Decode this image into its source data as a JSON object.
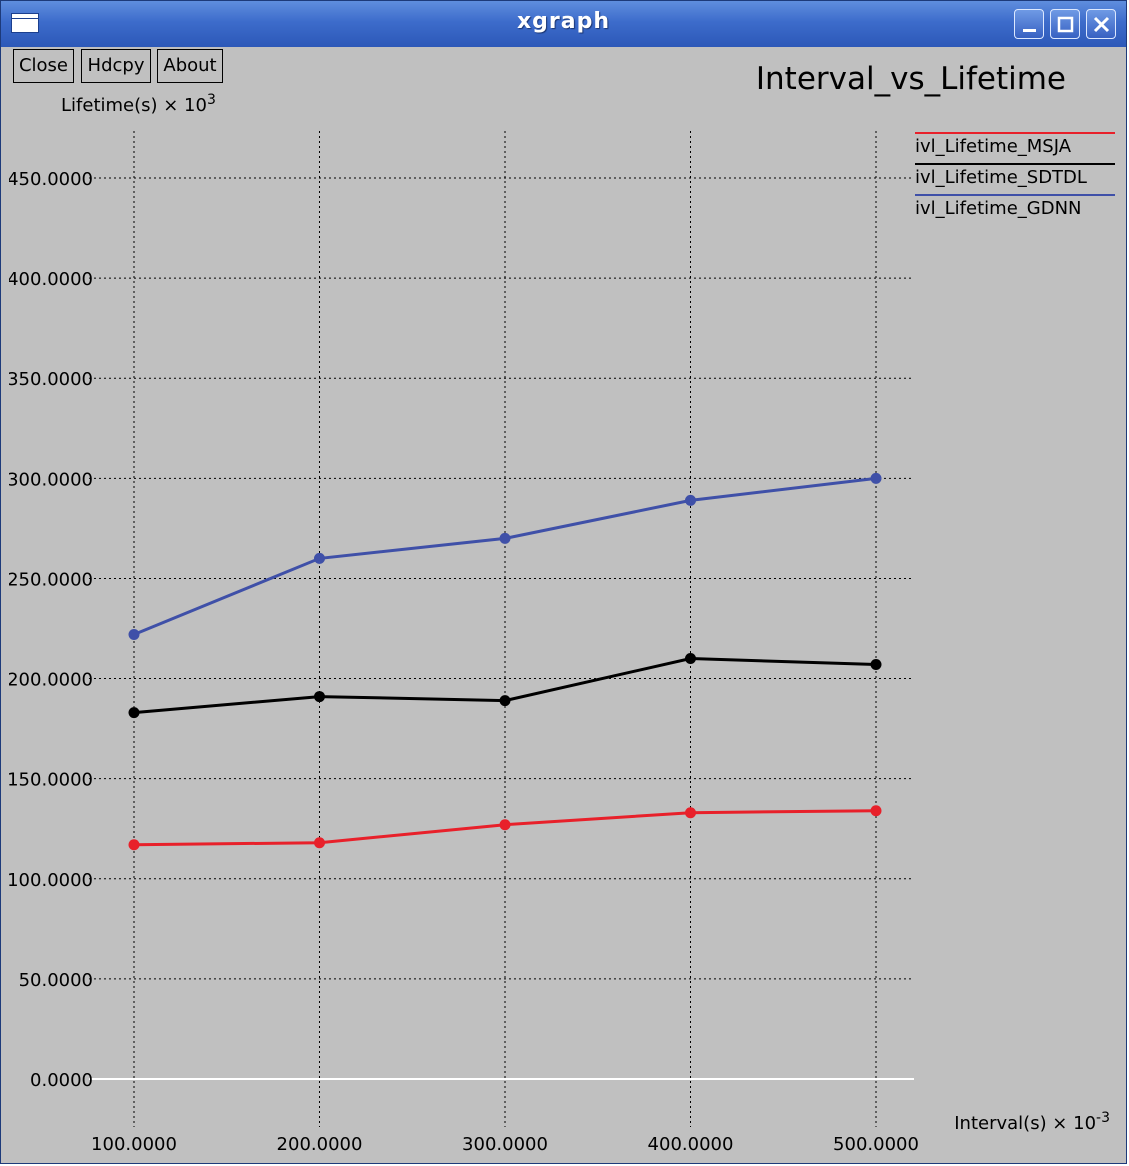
{
  "window": {
    "title": "xgraph"
  },
  "toolbar": {
    "close_label": "Close",
    "hdcpy_label": "Hdcpy",
    "about_label": "About"
  },
  "chart_data": {
    "type": "line",
    "title": "Interval_vs_Lifetime",
    "ylabel": "Lifetime(s) × 10",
    "ylabel_exp": "3",
    "xlabel": "Interval(s) × 10",
    "xlabel_exp": "-3",
    "xlim": [
      100,
      500
    ],
    "ylim": [
      0,
      450
    ],
    "x_ticks": [
      "100.0000",
      "200.0000",
      "300.0000",
      "400.0000",
      "500.0000"
    ],
    "y_ticks": [
      "0.0000",
      "50.0000",
      "100.0000",
      "150.0000",
      "200.0000",
      "250.0000",
      "300.0000",
      "350.0000",
      "400.0000",
      "450.0000"
    ],
    "grid": true,
    "legend_position": "top-right",
    "x": [
      100,
      200,
      300,
      400,
      500
    ],
    "series": [
      {
        "name": "ivl_Lifetime_MSJA",
        "color": "#e8202a",
        "values": [
          117,
          118,
          127,
          133,
          134
        ]
      },
      {
        "name": "ivl_Lifetime_SDTDL",
        "color": "#000000",
        "values": [
          183,
          191,
          189,
          210,
          207
        ]
      },
      {
        "name": "ivl_Lifetime_GDNN",
        "color": "#3f50a8",
        "values": [
          222,
          260,
          270,
          289,
          300
        ]
      }
    ]
  }
}
